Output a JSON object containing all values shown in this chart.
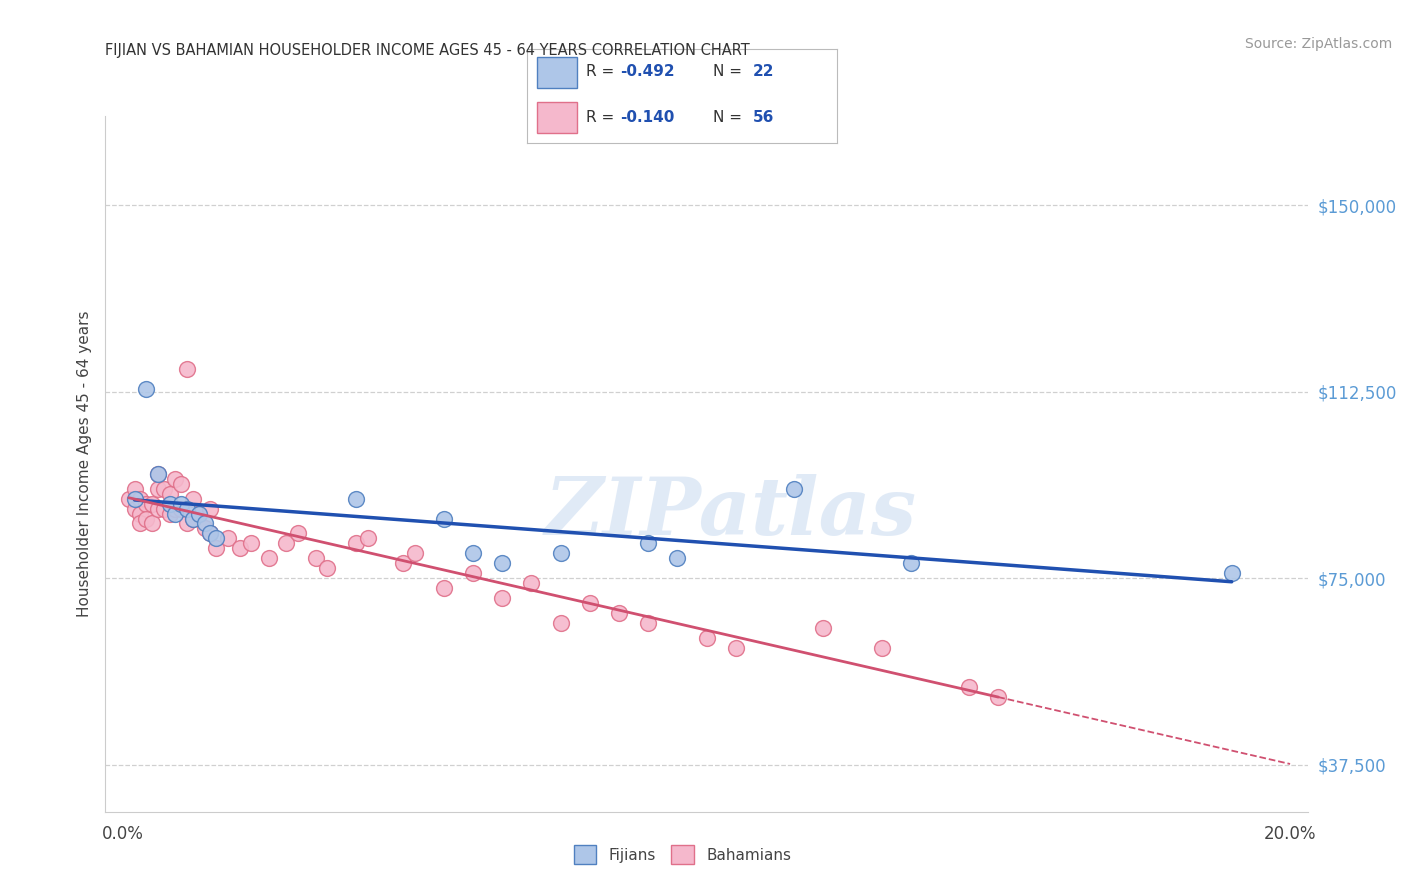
{
  "title": "FIJIAN VS BAHAMIAN HOUSEHOLDER INCOME AGES 45 - 64 YEARS CORRELATION CHART",
  "source": "Source: ZipAtlas.com",
  "ylabel": "Householder Income Ages 45 - 64 years",
  "y_ticks": [
    37500,
    75000,
    112500,
    150000
  ],
  "y_tick_labels": [
    "$37,500",
    "$75,000",
    "$112,500",
    "$150,000"
  ],
  "fijian_color": "#aec6e8",
  "bahamian_color": "#f5b8cc",
  "fijian_edge_color": "#5080c0",
  "bahamian_edge_color": "#e0708a",
  "fijian_line_color": "#2050b0",
  "bahamian_line_color": "#d05070",
  "R_fijian": -0.492,
  "N_fijian": 22,
  "R_bahamian": -0.14,
  "N_bahamian": 56,
  "watermark": "ZIPatlas",
  "fijian_points_x": [
    0.002,
    0.004,
    0.006,
    0.008,
    0.009,
    0.01,
    0.011,
    0.012,
    0.013,
    0.014,
    0.015,
    0.016,
    0.04,
    0.055,
    0.06,
    0.065,
    0.075,
    0.09,
    0.095,
    0.115,
    0.135,
    0.19
  ],
  "fijian_points_y": [
    91000,
    113000,
    96000,
    90000,
    88000,
    90000,
    89000,
    87000,
    88000,
    86000,
    84000,
    83000,
    91000,
    87000,
    80000,
    78000,
    80000,
    82000,
    79000,
    93000,
    78000,
    76000
  ],
  "bahamian_points_x": [
    0.001,
    0.002,
    0.002,
    0.003,
    0.003,
    0.003,
    0.004,
    0.004,
    0.005,
    0.005,
    0.006,
    0.006,
    0.006,
    0.007,
    0.007,
    0.008,
    0.008,
    0.009,
    0.009,
    0.01,
    0.01,
    0.011,
    0.011,
    0.012,
    0.012,
    0.013,
    0.014,
    0.015,
    0.015,
    0.016,
    0.018,
    0.02,
    0.022,
    0.025,
    0.028,
    0.03,
    0.033,
    0.035,
    0.04,
    0.042,
    0.048,
    0.05,
    0.055,
    0.06,
    0.065,
    0.07,
    0.075,
    0.08,
    0.085,
    0.09,
    0.1,
    0.105,
    0.12,
    0.13,
    0.145,
    0.15
  ],
  "bahamian_points_y": [
    91000,
    93000,
    89000,
    91000,
    88000,
    86000,
    90000,
    87000,
    90000,
    86000,
    96000,
    93000,
    89000,
    93000,
    89000,
    92000,
    88000,
    95000,
    89000,
    94000,
    89000,
    117000,
    86000,
    91000,
    87000,
    88000,
    85000,
    89000,
    84000,
    81000,
    83000,
    81000,
    82000,
    79000,
    82000,
    84000,
    79000,
    77000,
    82000,
    83000,
    78000,
    80000,
    73000,
    76000,
    71000,
    74000,
    66000,
    70000,
    68000,
    66000,
    63000,
    61000,
    65000,
    61000,
    53000,
    51000
  ],
  "background_color": "#ffffff",
  "grid_color": "#d0d0d0"
}
